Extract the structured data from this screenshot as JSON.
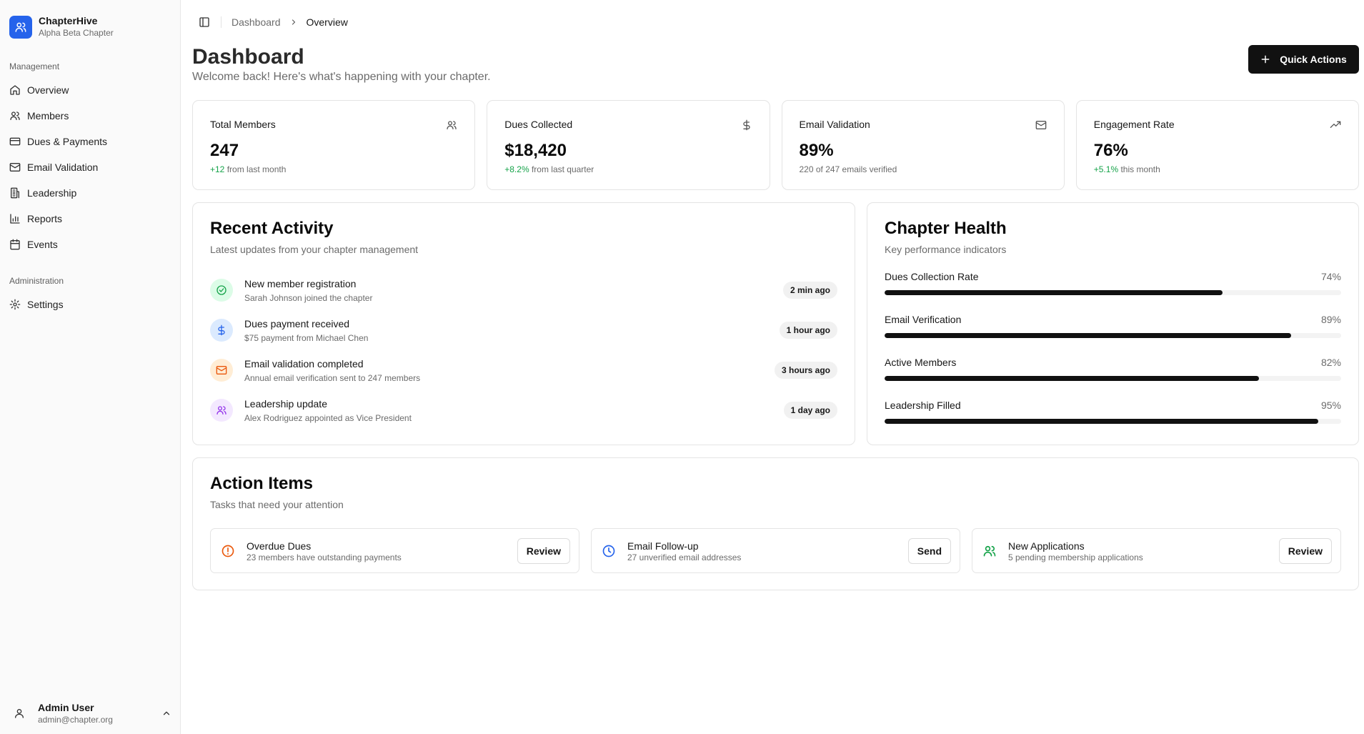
{
  "brand": {
    "name": "ChapterHive",
    "subtitle": "Alpha Beta Chapter",
    "icon": "users-icon",
    "color": "#2563eb"
  },
  "sidebar": {
    "group_management": "Management",
    "management_items": [
      {
        "label": "Overview",
        "icon": "home-icon"
      },
      {
        "label": "Members",
        "icon": "users-icon"
      },
      {
        "label": "Dues & Payments",
        "icon": "credit-card-icon"
      },
      {
        "label": "Email Validation",
        "icon": "mail-icon"
      },
      {
        "label": "Leadership",
        "icon": "building-icon"
      },
      {
        "label": "Reports",
        "icon": "bar-chart-icon"
      },
      {
        "label": "Events",
        "icon": "calendar-icon"
      }
    ],
    "group_admin": "Administration",
    "admin_items": [
      {
        "label": "Settings",
        "icon": "gear-icon"
      }
    ],
    "user": {
      "name": "Admin User",
      "email": "admin@chapter.org"
    }
  },
  "breadcrumb": {
    "parent": "Dashboard",
    "current": "Overview"
  },
  "header": {
    "title": "Dashboard",
    "subtitle": "Welcome back! Here's what's happening with your chapter.",
    "quick_actions": "Quick Actions"
  },
  "stats": [
    {
      "label": "Total Members",
      "value": "247",
      "delta": "+12",
      "note": " from last month",
      "icon": "users-icon"
    },
    {
      "label": "Dues Collected",
      "value": "$18,420",
      "delta": "+8.2%",
      "note": " from last quarter",
      "icon": "dollar-icon"
    },
    {
      "label": "Email Validation",
      "value": "89%",
      "delta": "",
      "note": "220 of 247 emails verified",
      "icon": "mail-icon"
    },
    {
      "label": "Engagement Rate",
      "value": "76%",
      "delta": "+5.1%",
      "note": " this month",
      "icon": "trending-up-icon"
    }
  ],
  "activity": {
    "title": "Recent Activity",
    "subtitle": "Latest updates from your chapter management",
    "items": [
      {
        "title": "New member registration",
        "desc": "Sarah Johnson joined the chapter",
        "time": "2 min ago",
        "icon": "check-circle-icon",
        "color": "#16a34a",
        "bg": "#dcfce7"
      },
      {
        "title": "Dues payment received",
        "desc": "$75 payment from Michael Chen",
        "time": "1 hour ago",
        "icon": "dollar-icon",
        "color": "#2563eb",
        "bg": "#dbeafe"
      },
      {
        "title": "Email validation completed",
        "desc": "Annual email verification sent to 247 members",
        "time": "3 hours ago",
        "icon": "mail-icon",
        "color": "#ea580c",
        "bg": "#ffedd5"
      },
      {
        "title": "Leadership update",
        "desc": "Alex Rodriguez appointed as Vice President",
        "time": "1 day ago",
        "icon": "users-icon",
        "color": "#9333ea",
        "bg": "#f3e8ff"
      }
    ]
  },
  "health": {
    "title": "Chapter Health",
    "subtitle": "Key performance indicators",
    "metrics": [
      {
        "name": "Dues Collection Rate",
        "label": "74%",
        "value": 74
      },
      {
        "name": "Email Verification",
        "label": "89%",
        "value": 89
      },
      {
        "name": "Active Members",
        "label": "82%",
        "value": 82
      },
      {
        "name": "Leadership Filled",
        "label": "95%",
        "value": 95
      }
    ]
  },
  "action_items": {
    "title": "Action Items",
    "subtitle": "Tasks that need your attention",
    "items": [
      {
        "title": "Overdue Dues",
        "desc": "23 members have outstanding payments",
        "button": "Review",
        "icon": "alert-circle-icon",
        "color": "#ea580c"
      },
      {
        "title": "Email Follow-up",
        "desc": "27 unverified email addresses",
        "button": "Send",
        "icon": "clock-icon",
        "color": "#2563eb"
      },
      {
        "title": "New Applications",
        "desc": "5 pending membership applications",
        "button": "Review",
        "icon": "users-icon",
        "color": "#16a34a"
      }
    ]
  }
}
